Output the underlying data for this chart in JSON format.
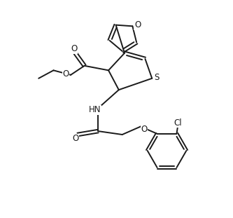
{
  "background_color": "#ffffff",
  "line_color": "#1a1a1a",
  "line_width": 1.4,
  "font_size": 8.5,
  "figsize": [
    3.33,
    3.11
  ],
  "dpi": 100,
  "xlim": [
    0,
    10
  ],
  "ylim": [
    0,
    9.33
  ]
}
